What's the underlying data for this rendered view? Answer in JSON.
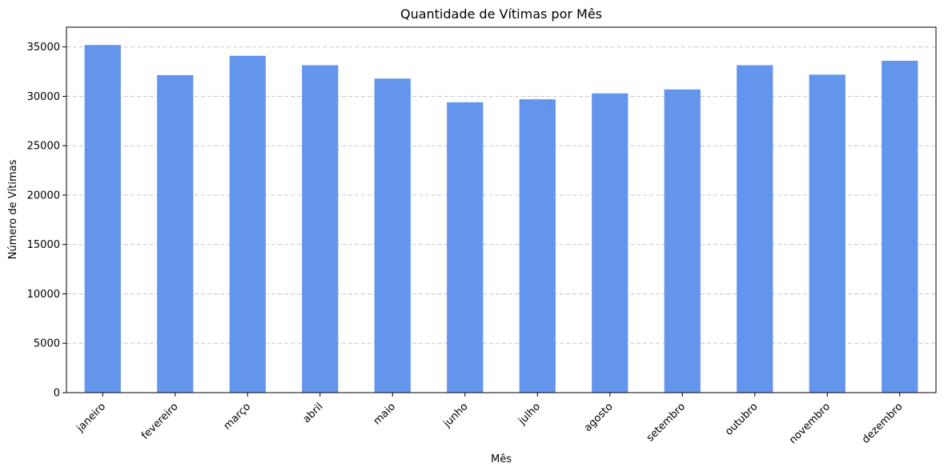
{
  "chart_data": {
    "type": "bar",
    "title": "Quantidade de Vítimas por Mês",
    "xlabel": "Mês",
    "ylabel": "Número de Vítimas",
    "categories": [
      "janeiro",
      "fevereiro",
      "março",
      "abril",
      "maio",
      "junho",
      "julho",
      "agosto",
      "setembro",
      "outubro",
      "novembro",
      "dezembro"
    ],
    "values": [
      35200,
      32150,
      34100,
      33150,
      31800,
      29400,
      29700,
      30300,
      30700,
      33150,
      32200,
      33600
    ],
    "ylim": [
      0,
      37000
    ],
    "yticks": [
      0,
      5000,
      10000,
      15000,
      20000,
      25000,
      30000,
      35000
    ],
    "grid": "y-axis dashed",
    "bar_color": "#6495ED",
    "grid_color": "#c8c8c8"
  }
}
